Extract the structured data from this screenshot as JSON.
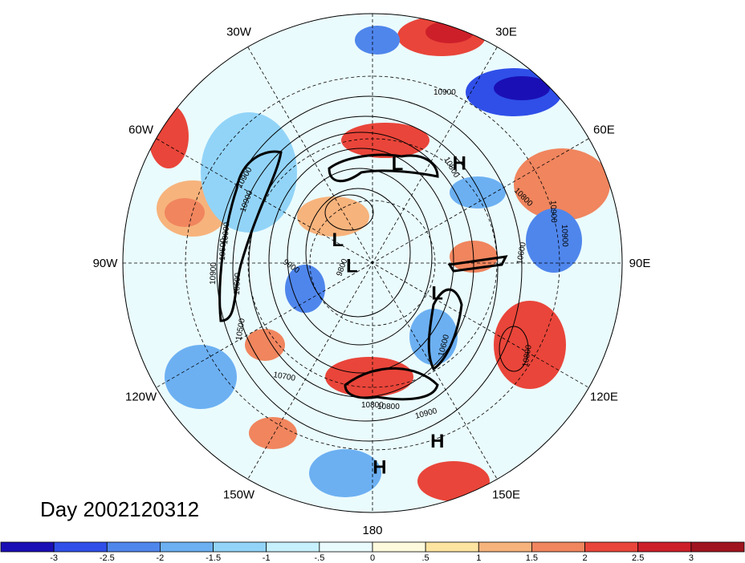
{
  "title": "Day 2002120312",
  "map": {
    "projection": "north-polar-stereographic",
    "longitude_labels": [
      {
        "text": "90E",
        "lon": 90
      },
      {
        "text": "60E",
        "lon": 60
      },
      {
        "text": "30E",
        "lon": 30
      },
      {
        "text": "0",
        "lon": 0
      },
      {
        "text": "30W",
        "lon": -30
      },
      {
        "text": "60W",
        "lon": -60
      },
      {
        "text": "90W",
        "lon": -90
      },
      {
        "text": "120W",
        "lon": -120
      },
      {
        "text": "150W",
        "lon": -150
      },
      {
        "text": "180",
        "lon": 180
      },
      {
        "text": "150E",
        "lon": 150
      },
      {
        "text": "120E",
        "lon": 120
      }
    ],
    "pressure_centers": [
      {
        "label": "H",
        "lon": 41,
        "lat": 42
      },
      {
        "label": "H",
        "lon": 160,
        "lat": 25
      },
      {
        "label": "H",
        "lon": 178,
        "lat": 21
      },
      {
        "label": "L",
        "lon": 115,
        "lat": 63
      },
      {
        "label": "L",
        "lon": 14,
        "lat": 52
      },
      {
        "label": "L",
        "lon": -98,
        "lat": 82
      },
      {
        "label": "L",
        "lon": -56,
        "lat": 74
      }
    ],
    "height_contour_labels": [
      "10900",
      "10900",
      "10900",
      "10900",
      "10900",
      "10900",
      "10900",
      "10800",
      "10800",
      "10800",
      "10800",
      "10700",
      "10600",
      "10600",
      "10600",
      "10500",
      "10500",
      "9900",
      "9800",
      "10800",
      "10900"
    ]
  },
  "colorbar": {
    "tick_labels": [
      "-3",
      "-2.5",
      "-2",
      "-1.5",
      "-1",
      "-.5",
      "0",
      ".5",
      "1",
      "1.5",
      "2",
      "2.5",
      "3"
    ],
    "colors": [
      "#1a0fb5",
      "#2f4fe8",
      "#4f86ec",
      "#6cb0f2",
      "#92d4f8",
      "#c6f0fb",
      "#eafbfd",
      "#fdf9dd",
      "#fde4a0",
      "#f7b37c",
      "#f0855e",
      "#e9453a",
      "#cc1f2a",
      "#a0141f"
    ]
  }
}
